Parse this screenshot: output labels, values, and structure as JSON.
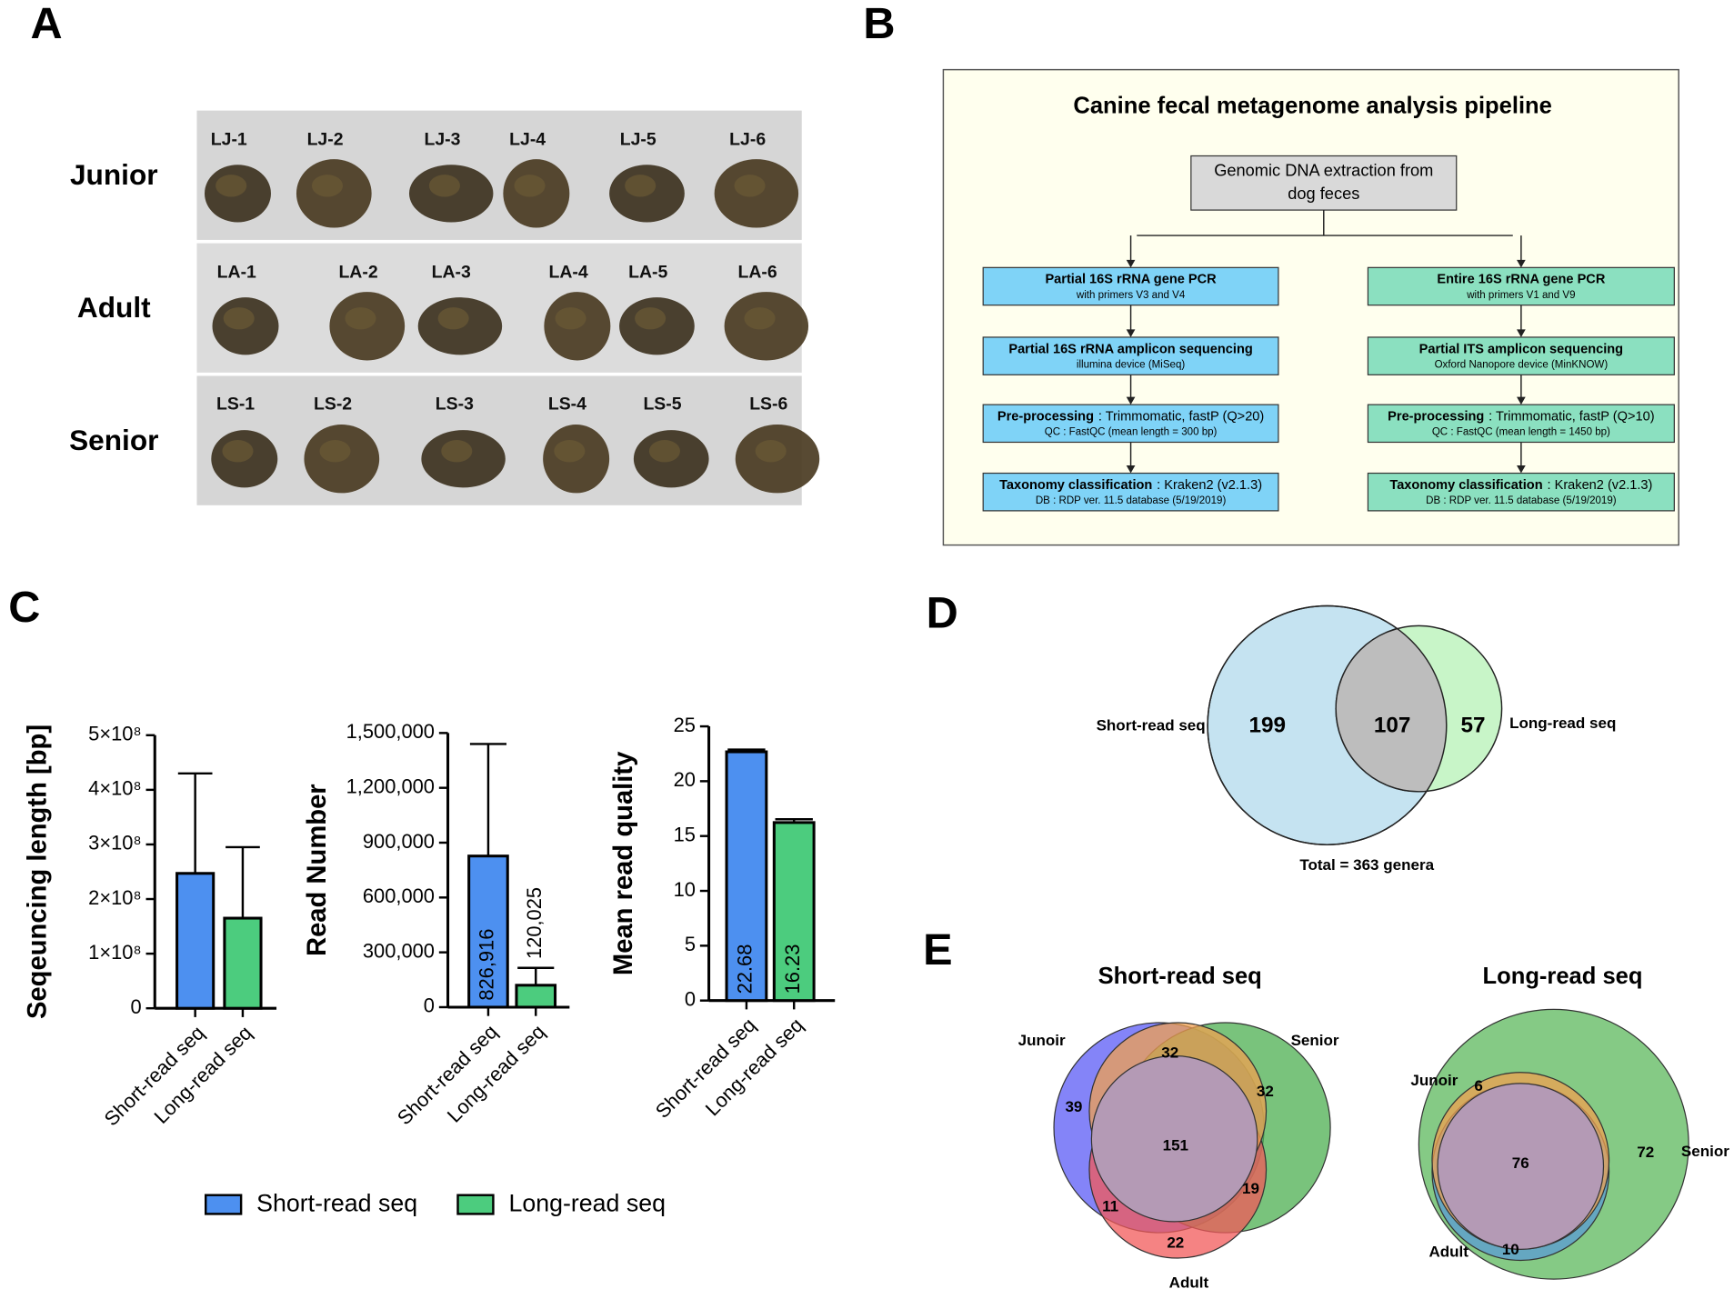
{
  "panel_labels": [
    "A",
    "B",
    "C",
    "D",
    "E"
  ],
  "photos": {
    "rows": [
      {
        "group": "Junior",
        "samples": [
          "LJ-1",
          "LJ-2",
          "LJ-3",
          "LJ-4",
          "LJ-5",
          "LJ-6"
        ]
      },
      {
        "group": "Adult",
        "samples": [
          "LA-1",
          "LA-2",
          "LA-3",
          "LA-4",
          "LA-5",
          "LA-6"
        ]
      },
      {
        "group": "Senior",
        "samples": [
          "LS-1",
          "LS-2",
          "LS-3",
          "LS-4",
          "LS-5",
          "LS-6"
        ]
      }
    ]
  },
  "pipeline": {
    "title": "Canine fecal metagenome analysis pipeline",
    "root": [
      "Genomic DNA extraction from",
      "dog feces"
    ],
    "branches": [
      {
        "color": "#7fd3f7",
        "steps": [
          {
            "head": "Partial 16S rRNA gene PCR",
            "sub": "with primers V3 and V4"
          },
          {
            "head": "Partial 16S rRNA amplicon sequencing",
            "sub": "illumina device (MiSeq)"
          },
          {
            "bold": "Pre-processing",
            "head": ": Trimmomatic, fastP (Q>20)",
            "sub": "QC : FastQC (mean length = 300 bp)"
          },
          {
            "bold": "Taxonomy classification",
            "head": ": Kraken2 (v2.1.3)",
            "sub": "DB : RDP ver. 11.5 database (5/19/2019)"
          }
        ]
      },
      {
        "color": "#8be0c0",
        "steps": [
          {
            "head": "Entire 16S rRNA gene PCR",
            "sub": "with primers V1 and V9"
          },
          {
            "head": "Partial ITS amplicon sequencing",
            "sub": "Oxford Nanopore device (MinKNOW)"
          },
          {
            "bold": "Pre-processing",
            "head": ": Trimmomatic, fastP (Q>10)",
            "sub": "QC : FastQC (mean length = 1450 bp)"
          },
          {
            "bold": "Taxonomy classification",
            "head": ": Kraken2 (v2.1.3)",
            "sub": "DB : RDP ver. 11.5 database (5/19/2019)"
          }
        ]
      }
    ]
  },
  "chart_data": [
    {
      "type": "bar",
      "y_label": "Seqeuncing length [bp]",
      "categories": [
        "Short-read seq",
        "Long-read seq"
      ],
      "values": [
        247000000,
        165000000
      ],
      "errors": [
        183000000,
        130000000
      ],
      "colors": [
        "#4d90f0",
        "#4ccc7e"
      ],
      "ylim": [
        0,
        500000000
      ],
      "yticks": [
        0,
        {
          "value": 100000000,
          "label": "1×10⁸"
        },
        {
          "value": 200000000,
          "label": "2×10⁸"
        },
        {
          "value": 300000000,
          "label": "3×10⁸"
        },
        {
          "value": 400000000,
          "label": "4×10⁸"
        },
        {
          "value": 500000000,
          "label": "5×10⁸"
        }
      ]
    },
    {
      "type": "bar",
      "y_label": "Read Number",
      "categories": [
        "Short-read seq",
        "Long-read seq"
      ],
      "values": [
        826916,
        120025
      ],
      "errors": [
        613000,
        95000
      ],
      "value_labels": [
        "826,916",
        "120,025"
      ],
      "colors": [
        "#4d90f0",
        "#4ccc7e"
      ],
      "ylim": [
        0,
        1500000
      ],
      "yticks": [
        0,
        {
          "value": 300000,
          "label": "300,000"
        },
        {
          "value": 600000,
          "label": "600,000"
        },
        {
          "value": 900000,
          "label": "900,000"
        },
        {
          "value": 1200000,
          "label": "1,200,000"
        },
        {
          "value": 1500000,
          "label": "1,500,000"
        }
      ]
    },
    {
      "type": "bar",
      "y_label": "Mean read quality",
      "categories": [
        "Short-read seq",
        "Long-read seq"
      ],
      "values": [
        22.68,
        16.23
      ],
      "errors": [
        0.2,
        0.3
      ],
      "data_labels": true,
      "colors": [
        "#4d90f0",
        "#4ccc7e"
      ],
      "ylim": [
        0,
        25
      ],
      "yticks": [
        0,
        5,
        10,
        15,
        20,
        25
      ]
    }
  ],
  "legend": [
    {
      "name": "Short-read seq",
      "color": "#4d90f0"
    },
    {
      "name": "Long-read seq",
      "color": "#4ccc7e"
    }
  ],
  "venn_two": {
    "sets": [
      "Short-read seq",
      "Long-read seq"
    ],
    "counts": [
      199,
      107,
      57
    ],
    "total": "Total = 363 genera"
  },
  "venn_groups": [
    {
      "title": "Short-read seq",
      "groups": [
        "Junoir",
        "Senior",
        "Adult"
      ],
      "regions": [
        39,
        32,
        32,
        151,
        11,
        19,
        22
      ]
    },
    {
      "title": "Long-read seq",
      "groups": [
        "Junoir",
        "Senior",
        "Adult"
      ],
      "regions": [
        6,
        76,
        72,
        10
      ]
    }
  ]
}
